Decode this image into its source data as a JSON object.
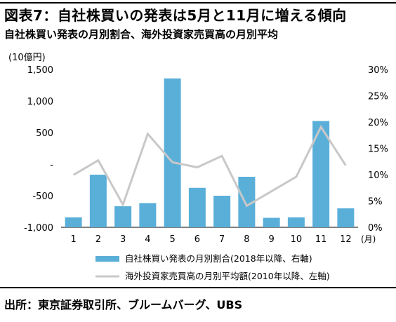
{
  "header": {
    "title": "図表7：自社株買いの発表は5月と11月に増える傾向",
    "subtitle": "自社株買い発表の月別割合、海外投資家売買高の月別平均"
  },
  "footer": {
    "source": "出所：東京証券取引所、ブルームバーグ、UBS"
  },
  "colors": {
    "bar": "#5aafd9",
    "line": "#c8c8c8"
  },
  "chart_data": {
    "type": "bar+line",
    "categories": [
      "1",
      "2",
      "3",
      "4",
      "5",
      "6",
      "7",
      "8",
      "9",
      "10",
      "11",
      "12"
    ],
    "xlabel_unit": "(月)",
    "left_axis": {
      "unit_label": "(10億円)",
      "ticks": [
        "1,500",
        "1,000",
        "500",
        "-",
        "-500",
        "-1,000"
      ],
      "tick_values": [
        1500,
        1000,
        500,
        0,
        -500,
        -1000
      ],
      "range": [
        -1000,
        1500
      ]
    },
    "right_axis": {
      "ticks": [
        "30%",
        "25%",
        "20%",
        "15%",
        "10%",
        "5%",
        "0%"
      ],
      "tick_values": [
        30,
        25,
        20,
        15,
        10,
        5,
        0
      ],
      "range": [
        0,
        30
      ]
    },
    "series": [
      {
        "name": "自社株買い発表の月別割合(2018年以降、右軸)",
        "type": "bar",
        "axis": "right",
        "values": [
          1.9,
          10.0,
          4.0,
          4.6,
          28.3,
          7.5,
          6.0,
          9.6,
          1.8,
          1.9,
          20.2,
          3.6
        ]
      },
      {
        "name": "海外投資家売買高の月別平均額(2010年以降、左軸)",
        "type": "line",
        "axis": "left",
        "values": [
          -170,
          60,
          -640,
          480,
          30,
          -50,
          130,
          -660,
          -430,
          -200,
          590,
          -20
        ]
      }
    ]
  }
}
